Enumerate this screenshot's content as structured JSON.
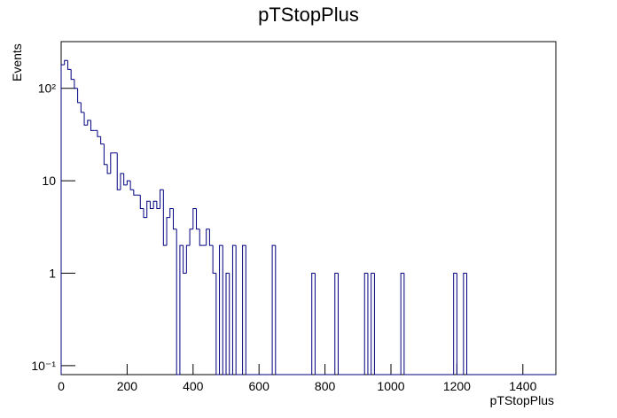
{
  "chart_data": {
    "type": "histogram",
    "title": "pTStopPlus",
    "x_label": "pTStopPlus",
    "y_label": "Events",
    "bins": [
      0,
      10,
      20,
      30,
      40,
      50,
      60,
      70,
      80,
      90,
      100,
      110,
      120,
      130,
      140,
      150,
      160,
      170,
      180,
      190,
      200,
      210,
      220,
      230,
      240,
      250,
      260,
      270,
      280,
      290,
      300,
      310,
      320,
      330,
      340,
      350,
      360,
      370,
      380,
      390,
      400,
      410,
      420,
      430,
      440,
      450,
      460,
      470,
      480,
      490,
      500,
      510,
      520,
      530,
      540,
      550,
      560,
      570,
      580,
      590,
      600,
      610,
      620,
      630,
      640,
      650,
      660,
      670,
      680,
      690,
      700,
      710,
      720,
      730,
      740,
      750,
      760,
      770,
      780,
      790,
      800,
      810,
      820,
      830,
      840,
      850,
      860,
      870,
      880,
      890,
      900,
      910,
      920,
      930,
      940,
      950,
      960,
      970,
      980,
      990,
      1000,
      1010,
      1020,
      1030,
      1040,
      1050,
      1060,
      1070,
      1080,
      1090,
      1100,
      1110,
      1120,
      1130,
      1140,
      1150,
      1160,
      1170,
      1180,
      1190,
      1200,
      1210,
      1220,
      1230,
      1240,
      1250,
      1260,
      1270,
      1280,
      1290,
      1300,
      1310,
      1320,
      1330,
      1340,
      1350,
      1360,
      1370,
      1380,
      1390,
      1400,
      1410,
      1420,
      1430,
      1440,
      1450,
      1460,
      1470,
      1480,
      1490,
      1500
    ],
    "values": [
      180,
      200,
      160,
      125,
      100,
      70,
      55,
      40,
      45,
      35,
      35,
      30,
      25,
      15,
      12,
      20,
      20,
      8,
      12,
      9,
      10,
      8,
      7,
      7,
      5,
      4,
      6,
      5,
      6,
      5,
      8,
      2,
      4,
      5,
      3,
      0,
      2,
      1,
      2,
      3,
      5,
      3,
      2,
      2,
      3,
      2,
      1,
      0,
      2,
      0,
      1,
      0,
      2,
      0,
      0,
      2,
      0,
      0,
      0,
      0,
      0,
      0,
      0,
      0,
      2,
      0,
      0,
      0,
      0,
      0,
      0,
      0,
      0,
      0,
      0,
      0,
      1,
      0,
      0,
      0,
      0,
      0,
      0,
      1,
      0,
      0,
      0,
      0,
      0,
      0,
      0,
      0,
      1,
      0,
      1,
      0,
      0,
      0,
      0,
      0,
      0,
      0,
      0,
      1,
      0,
      0,
      0,
      0,
      0,
      0,
      0,
      0,
      0,
      0,
      0,
      0,
      0,
      0,
      0,
      1,
      0,
      0,
      1,
      0,
      0,
      0,
      0,
      0,
      0,
      0,
      0,
      0,
      0,
      0,
      0,
      0,
      0,
      0,
      0,
      0,
      0,
      0,
      0,
      0,
      0,
      0,
      0,
      0,
      0,
      0
    ],
    "color": "#000080",
    "log_y": true,
    "xlim": [
      0,
      1500
    ],
    "ylim": [
      0.08,
      320
    ],
    "xticks": [
      0,
      200,
      400,
      600,
      800,
      1000,
      1200,
      1400
    ],
    "yticks": [
      {
        "value": 0.1,
        "label": "10⁻¹"
      },
      1,
      10,
      {
        "value": 100,
        "label": "10²"
      }
    ]
  }
}
